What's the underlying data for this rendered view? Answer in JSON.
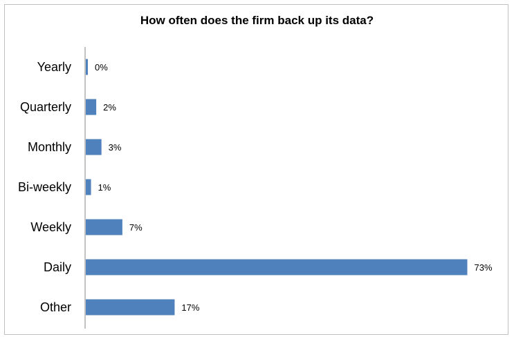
{
  "chart_data": {
    "type": "bar",
    "orientation": "horizontal",
    "title": "How often does the firm back up its data?",
    "xlabel": "",
    "ylabel": "",
    "categories": [
      "Yearly",
      "Quarterly",
      "Monthly",
      "Bi-weekly",
      "Weekly",
      "Daily",
      "Other"
    ],
    "values": [
      0,
      2,
      3,
      1,
      7,
      73,
      17
    ],
    "data_labels": [
      "0%",
      "2%",
      "3%",
      "1%",
      "7%",
      "73%",
      "17%"
    ],
    "unit": "%",
    "xlim": [
      0,
      80
    ],
    "grid": false,
    "legend": "none",
    "bar_color": "#4f81bd",
    "axis_color": "#868686"
  }
}
